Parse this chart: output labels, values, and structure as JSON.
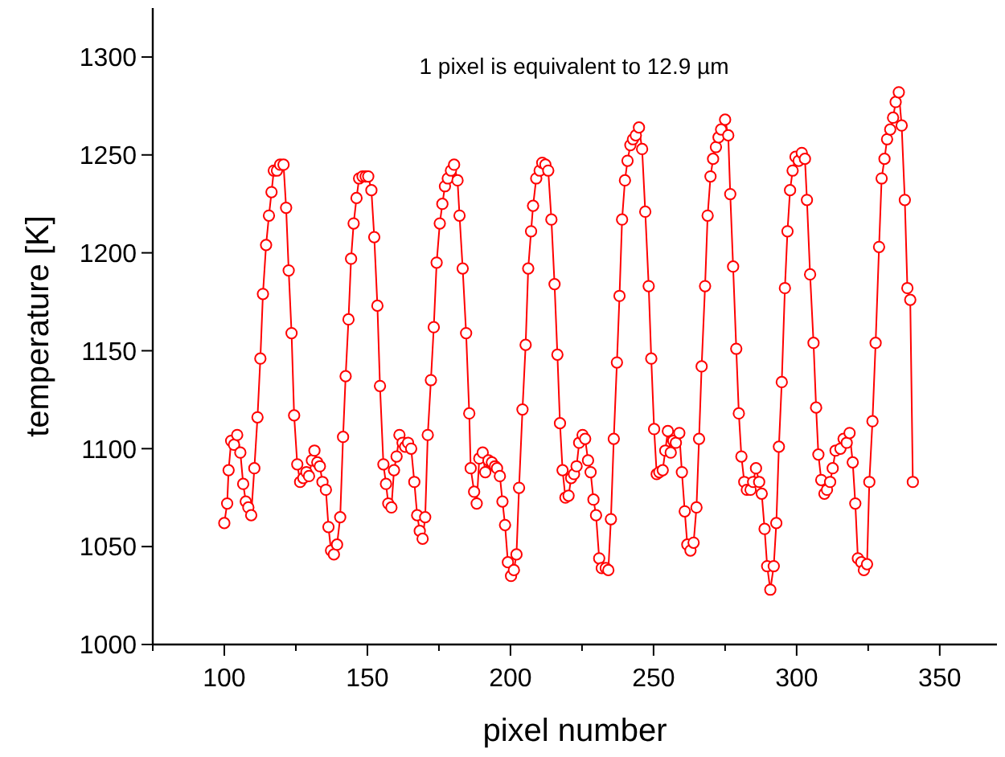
{
  "chart_data": {
    "type": "line",
    "xlabel": "pixel number",
    "ylabel": "temperature [K]",
    "annotations": [
      "1 pixel is equivalent to 12.9 µm"
    ],
    "xlim": [
      75,
      370
    ],
    "ylim": [
      1000,
      1325
    ],
    "xticks": [
      {
        "value": 75,
        "label": null
      },
      100,
      {
        "value": 125,
        "label": null
      },
      150,
      {
        "value": 175,
        "label": null
      },
      200,
      {
        "value": 225,
        "label": null
      },
      250,
      {
        "value": 275,
        "label": null
      },
      300,
      {
        "value": 325,
        "label": null
      },
      350
    ],
    "yticks": [
      1000,
      1050,
      1100,
      1150,
      1200,
      1250,
      1300
    ],
    "grid": false,
    "marker": "circle",
    "line_style": "solid",
    "series": [
      {
        "color": "#ff0000",
        "x": [
          100,
          101,
          101.5,
          102.4,
          103.4,
          104.5,
          105.6,
          106.6,
          107.5,
          108.4,
          109.4,
          110.5,
          111.6,
          112.6,
          113.5,
          114.6,
          115.6,
          116.5,
          117.3,
          118.4,
          119.5,
          120.7,
          121.6,
          122.5,
          123.5,
          124.4,
          125.5,
          126.5,
          127.6,
          128.7,
          129.6,
          130.6,
          131.5,
          132.5,
          133.4,
          134.3,
          135.5,
          136.4,
          137.3,
          138.3,
          139.4,
          140.5,
          141.5,
          142.4,
          143.4,
          144.3,
          145.2,
          146.2,
          147.1,
          148.3,
          149.4,
          150.3,
          151.4,
          152.4,
          153.5,
          154.4,
          155.6,
          156.5,
          157.3,
          158.4,
          159.3,
          160.2,
          161.2,
          162.3,
          163.2,
          164.2,
          165.3,
          166.4,
          167.4,
          168.3,
          169.3,
          170.2,
          171.1,
          172.2,
          173.2,
          174.2,
          175.3,
          176.2,
          177.1,
          178.1,
          179.2,
          180.3,
          181.5,
          182.2,
          183.3,
          184.5,
          185.6,
          186.1,
          187.3,
          188.2,
          189.1,
          190.3,
          191.2,
          192.3,
          193.5,
          194.6,
          195.3,
          196.3,
          197.2,
          198.1,
          199.1,
          200.2,
          201.2,
          202.1,
          203,
          204.2,
          205.3,
          206.2,
          207.2,
          207.9,
          209,
          210.2,
          211.1,
          212.2,
          213.2,
          214.3,
          215.4,
          216.4,
          217.3,
          218.2,
          219.2,
          220.3,
          221.2,
          222.2,
          223.1,
          224,
          225.2,
          226.1,
          227.1,
          228,
          229,
          229.9,
          231,
          231.9,
          233.3,
          234.2,
          235.1,
          236.1,
          237.2,
          238.1,
          239,
          240,
          240.9,
          241.9,
          242.8,
          243.8,
          244.9,
          246,
          247.1,
          248.3,
          249.2,
          250.2,
          251.1,
          252,
          253.2,
          254.1,
          255,
          256,
          256.9,
          257.8,
          259,
          259.9,
          260.9,
          261.8,
          262.9,
          264,
          265,
          265.9,
          266.8,
          268,
          268.9,
          269.9,
          270.8,
          271.8,
          272.7,
          273.6,
          275,
          276.1,
          276.8,
          277.8,
          278.9,
          279.8,
          280.7,
          281.7,
          282.6,
          283.9,
          284.8,
          285.8,
          286.9,
          287.8,
          288.8,
          289.7,
          290.8,
          292,
          292.9,
          293.8,
          294.8,
          295.9,
          296.8,
          297.7,
          298.6,
          299.6,
          300.7,
          301.8,
          302.9,
          303.6,
          304.7,
          305.9,
          306.8,
          307.6,
          308.6,
          309.7,
          310.6,
          311.7,
          312.6,
          313.6,
          315.3,
          316.4,
          317.5,
          318.5,
          319.6,
          320.5,
          321.4,
          322.6,
          323.5,
          324.6,
          325.4,
          326.5,
          327.6,
          328.8,
          329.7,
          330.7,
          331.6,
          332.7,
          333.7,
          334.6,
          335.7,
          336.7,
          337.8,
          338.7,
          339.7,
          340.6
        ],
        "values": [
          1062,
          1072,
          1089,
          1104,
          1102,
          1107,
          1098,
          1082,
          1073,
          1070,
          1066,
          1090,
          1116,
          1146,
          1179,
          1204,
          1219,
          1231,
          1242,
          1242,
          1245,
          1245,
          1223,
          1191,
          1159,
          1117,
          1092,
          1083,
          1085,
          1088,
          1086,
          1094,
          1099,
          1093,
          1091,
          1083,
          1079,
          1060,
          1048,
          1046,
          1051,
          1065,
          1106,
          1137,
          1166,
          1197,
          1215,
          1228,
          1238,
          1239,
          1239,
          1239,
          1232,
          1208,
          1173,
          1132,
          1092,
          1082,
          1072,
          1070,
          1089,
          1096,
          1107,
          1103,
          1101,
          1103,
          1100,
          1083,
          1066,
          1058,
          1054,
          1065,
          1107,
          1135,
          1162,
          1195,
          1215,
          1225,
          1234,
          1238,
          1242,
          1245,
          1237,
          1219,
          1192,
          1159,
          1118,
          1090,
          1078,
          1072,
          1095,
          1098,
          1088,
          1094,
          1093,
          1091,
          1090,
          1086,
          1073,
          1061,
          1042,
          1035,
          1038,
          1046,
          1080,
          1120,
          1153,
          1192,
          1211,
          1224,
          1238,
          1242,
          1246,
          1245,
          1242,
          1217,
          1184,
          1148,
          1113,
          1089,
          1075,
          1076,
          1085,
          1087,
          1091,
          1103,
          1107,
          1105,
          1094,
          1088,
          1074,
          1066,
          1044,
          1039,
          1039,
          1038,
          1064,
          1105,
          1144,
          1178,
          1217,
          1237,
          1247,
          1255,
          1258,
          1260,
          1264,
          1253,
          1221,
          1183,
          1146,
          1110,
          1087,
          1088,
          1089,
          1099,
          1109,
          1098,
          1104,
          1103,
          1108,
          1088,
          1068,
          1051,
          1048,
          1052,
          1070,
          1105,
          1142,
          1183,
          1219,
          1239,
          1248,
          1254,
          1259,
          1263,
          1268,
          1260,
          1230,
          1193,
          1151,
          1118,
          1096,
          1083,
          1079,
          1079,
          1083,
          1090,
          1083,
          1077,
          1059,
          1040,
          1028,
          1040,
          1062,
          1101,
          1134,
          1182,
          1211,
          1232,
          1242,
          1249,
          1247,
          1251,
          1248,
          1227,
          1189,
          1154,
          1121,
          1097,
          1084,
          1077,
          1079,
          1083,
          1090,
          1099,
          1100,
          1105,
          1103,
          1108,
          1093,
          1072,
          1044,
          1042,
          1038,
          1041,
          1083,
          1114,
          1154,
          1203,
          1238,
          1248,
          1258,
          1263,
          1269,
          1277,
          1282,
          1265,
          1227,
          1182,
          1176,
          1083
        ]
      }
    ]
  }
}
